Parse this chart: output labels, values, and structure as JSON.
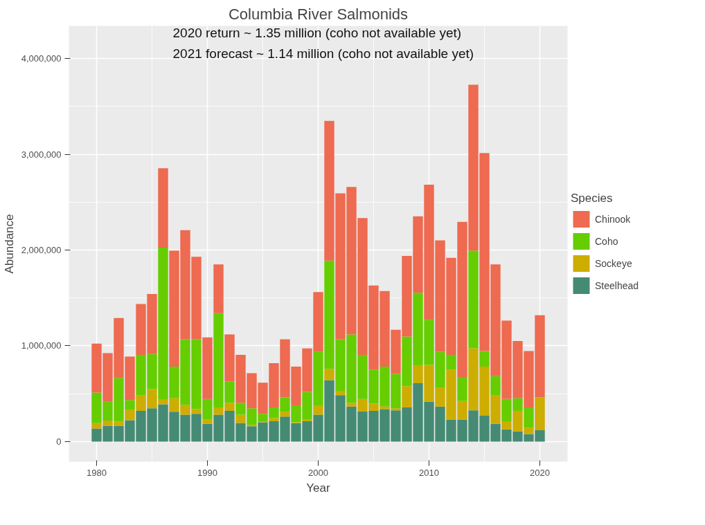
{
  "chart_data": {
    "type": "bar",
    "stacked": true,
    "title": "Columbia River Salmonids",
    "xlabel": "Year",
    "ylabel": "Abundance",
    "legend_title": "Species",
    "legend": "right",
    "grid": true,
    "annotations": [
      "2020 return ~ 1.35 million (coho not available yet)",
      "2021 forecast ~ 1.14 million (coho not available yet)"
    ],
    "x": [
      1980,
      1981,
      1982,
      1983,
      1984,
      1985,
      1986,
      1987,
      1988,
      1989,
      1990,
      1991,
      1992,
      1993,
      1994,
      1995,
      1996,
      1997,
      1998,
      1999,
      2000,
      2001,
      2002,
      2003,
      2004,
      2005,
      2006,
      2007,
      2008,
      2009,
      2010,
      2011,
      2012,
      2013,
      2014,
      2015,
      2016,
      2017,
      2018,
      2019,
      2020
    ],
    "xlim": [
      1977.5,
      2022.5
    ],
    "xticks": [
      1980,
      1990,
      2000,
      2010,
      2020
    ],
    "ylim": [
      -210000,
      4340000
    ],
    "yticks": [
      {
        "value": 0,
        "label": "0"
      },
      {
        "value": 1000000,
        "label": "1,000,000"
      },
      {
        "value": 2000000,
        "label": "2,000,000"
      },
      {
        "value": 3000000,
        "label": "3,000,000"
      },
      {
        "value": 4000000,
        "label": "4,000,000"
      }
    ],
    "series": [
      {
        "name": "Steelhead",
        "color": "#458b74",
        "values": [
          137000,
          165000,
          165000,
          224000,
          320000,
          348000,
          389000,
          311000,
          281000,
          291000,
          185000,
          281000,
          320000,
          195000,
          160000,
          201000,
          213000,
          261000,
          192000,
          213000,
          281000,
          641000,
          485000,
          366000,
          314000,
          320000,
          339000,
          327000,
          357000,
          609000,
          416000,
          366000,
          231000,
          231000,
          327000,
          270000,
          185000,
          128000,
          108000,
          78000,
          119000
        ]
      },
      {
        "name": "Sockeye",
        "color": "#cdad00",
        "values": [
          55000,
          55000,
          46000,
          106000,
          161000,
          201000,
          55000,
          142000,
          103000,
          48000,
          48000,
          76000,
          85000,
          86000,
          14000,
          12000,
          32000,
          50000,
          9000,
          16000,
          97000,
          119000,
          46000,
          39000,
          132000,
          76000,
          27000,
          21000,
          222000,
          183000,
          385000,
          195000,
          522000,
          192000,
          648000,
          513000,
          296000,
          85000,
          212000,
          68000,
          343000
        ]
      },
      {
        "name": "Coho",
        "color": "#66cd00",
        "values": [
          321000,
          196000,
          455000,
          105000,
          425000,
          366000,
          1581000,
          330000,
          687000,
          732000,
          213000,
          984000,
          224000,
          124000,
          174000,
          78000,
          112000,
          151000,
          177000,
          290000,
          558000,
          1130000,
          540000,
          714000,
          460000,
          357000,
          417000,
          359000,
          519000,
          762000,
          471000,
          375000,
          153000,
          252000,
          1020000,
          162000,
          203000,
          233000,
          133000,
          211000,
          0
        ]
      },
      {
        "name": "Chinook",
        "color": "#ee6a50",
        "values": [
          510000,
          508000,
          625000,
          453000,
          531000,
          627000,
          829000,
          1212000,
          1137000,
          858000,
          643000,
          510000,
          490000,
          501000,
          366000,
          325000,
          462000,
          607000,
          405000,
          454000,
          625000,
          1459000,
          1522000,
          1540000,
          1428000,
          876000,
          789000,
          460000,
          840000,
          798000,
          1410000,
          1165000,
          1012000,
          1620000,
          1732000,
          2068000,
          1167000,
          817000,
          597000,
          588000,
          858000
        ]
      }
    ]
  }
}
